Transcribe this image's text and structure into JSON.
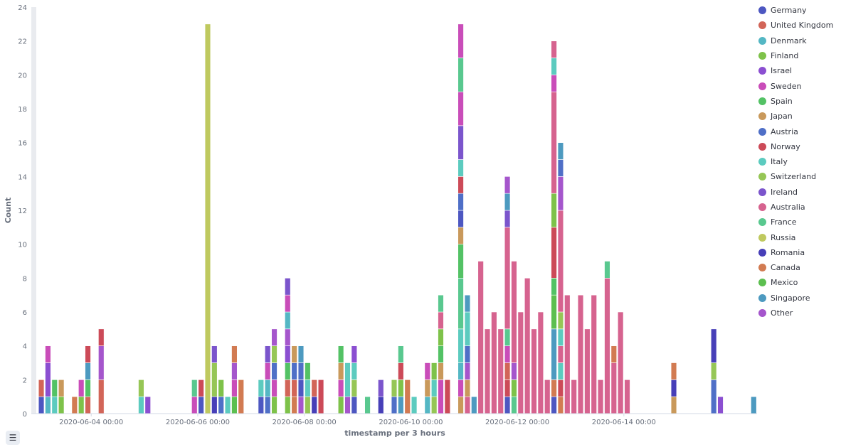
{
  "colors": {
    "Germany": "#4d57c1",
    "United Kingdom": "#d26558",
    "Denmark": "#54b7c4",
    "Finland": "#7ec24a",
    "Israel": "#8b4fd1",
    "Sweden": "#c94db9",
    "Spain": "#53c265",
    "Japan": "#c9995b",
    "Austria": "#4f6fc7",
    "Norway": "#cc4a58",
    "Italy": "#5ccbbf",
    "Switzerland": "#96c656",
    "Ireland": "#7b55cc",
    "Australia": "#d6638f",
    "France": "#59c88f",
    "Russia": "#bfc95f",
    "Romania": "#473fb8",
    "Canada": "#d27b52",
    "Mexico": "#5cbf50",
    "Singapore": "#4d9ac0",
    "Other": "#a556cc"
  },
  "legend_toggle": {
    "icon": "list-icon",
    "glyph": "☰"
  },
  "chart_data": {
    "type": "bar",
    "stacked": true,
    "xlabel": "timestamp per 3 hours",
    "ylabel": "Count",
    "ylim": [
      0,
      24
    ],
    "yticks": [
      0,
      2,
      4,
      6,
      8,
      10,
      12,
      14,
      16,
      18,
      20,
      22,
      24
    ],
    "xticks": [
      "2020-06-04 00:00",
      "2020-06-06 00:00",
      "2020-06-08 00:00",
      "2020-06-10 00:00",
      "2020-06-12 00:00",
      "2020-06-14 00:00"
    ],
    "x_range": [
      "2020-06-02 21:00",
      "2020-06-16 12:00"
    ],
    "grid": false,
    "legend_position": "right",
    "series_names": [
      "Germany",
      "United Kingdom",
      "Denmark",
      "Finland",
      "Israel",
      "Sweden",
      "Spain",
      "Japan",
      "Austria",
      "Norway",
      "Italy",
      "Switzerland",
      "Ireland",
      "Australia",
      "France",
      "Russia",
      "Romania",
      "Canada",
      "Mexico",
      "Singapore",
      "Other"
    ],
    "bars": [
      {
        "t": "2020-06-03 00:00",
        "s": [
          [
            "Germany",
            1
          ],
          [
            "United Kingdom",
            1
          ]
        ]
      },
      {
        "t": "2020-06-03 03:00",
        "s": [
          [
            "Denmark",
            1
          ],
          [
            "Israel",
            2
          ],
          [
            "Sweden",
            1
          ]
        ]
      },
      {
        "t": "2020-06-03 06:00",
        "s": [
          [
            "Italy",
            1
          ],
          [
            "Spain",
            1
          ]
        ]
      },
      {
        "t": "2020-06-03 09:00",
        "s": [
          [
            "Finland",
            1
          ],
          [
            "Japan",
            1
          ]
        ]
      },
      {
        "t": "2020-06-03 15:00",
        "s": [
          [
            "Canada",
            1
          ]
        ]
      },
      {
        "t": "2020-06-03 18:00",
        "s": [
          [
            "Finland",
            1
          ],
          [
            "Sweden",
            1
          ]
        ]
      },
      {
        "t": "2020-06-03 21:00",
        "s": [
          [
            "United Kingdom",
            1
          ],
          [
            "Spain",
            1
          ],
          [
            "Singapore",
            1
          ],
          [
            "Norway",
            1
          ]
        ]
      },
      {
        "t": "2020-06-04 03:00",
        "s": [
          [
            "United Kingdom",
            2
          ],
          [
            "Other",
            2
          ],
          [
            "Norway",
            1
          ]
        ]
      },
      {
        "t": "2020-06-04 21:00",
        "s": [
          [
            "Italy",
            1
          ],
          [
            "Switzerland",
            1
          ]
        ]
      },
      {
        "t": "2020-06-05 00:00",
        "s": [
          [
            "Israel",
            1
          ]
        ]
      },
      {
        "t": "2020-06-05 21:00",
        "s": [
          [
            "Sweden",
            1
          ],
          [
            "France",
            1
          ]
        ]
      },
      {
        "t": "2020-06-06 00:00",
        "s": [
          [
            "Germany",
            1
          ],
          [
            "Norway",
            1
          ]
        ]
      },
      {
        "t": "2020-06-06 03:00",
        "s": [
          [
            "Russia",
            23
          ]
        ]
      },
      {
        "t": "2020-06-06 06:00",
        "s": [
          [
            "Romania",
            1
          ],
          [
            "Switzerland",
            2
          ],
          [
            "Ireland",
            1
          ]
        ]
      },
      {
        "t": "2020-06-06 09:00",
        "s": [
          [
            "Austria",
            1
          ],
          [
            "Finland",
            1
          ]
        ]
      },
      {
        "t": "2020-06-06 12:00",
        "s": [
          [
            "Italy",
            1
          ]
        ]
      },
      {
        "t": "2020-06-06 15:00",
        "s": [
          [
            "Mexico",
            1
          ],
          [
            "Sweden",
            1
          ],
          [
            "Other",
            1
          ],
          [
            "Canada",
            1
          ]
        ]
      },
      {
        "t": "2020-06-06 18:00",
        "s": [
          [
            "Canada",
            2
          ]
        ]
      },
      {
        "t": "2020-06-07 03:00",
        "s": [
          [
            "Germany",
            1
          ],
          [
            "Italy",
            1
          ]
        ]
      },
      {
        "t": "2020-06-07 06:00",
        "s": [
          [
            "Austria",
            1
          ],
          [
            "Denmark",
            1
          ],
          [
            "Sweden",
            1
          ],
          [
            "Ireland",
            1
          ]
        ]
      },
      {
        "t": "2020-06-07 09:00",
        "s": [
          [
            "Finland",
            1
          ],
          [
            "Sweden",
            1
          ],
          [
            "Austria",
            1
          ],
          [
            "Switzerland",
            1
          ],
          [
            "Other",
            1
          ]
        ]
      },
      {
        "t": "2020-06-07 15:00",
        "s": [
          [
            "Finland",
            1
          ],
          [
            "United Kingdom",
            1
          ],
          [
            "Spain",
            1
          ],
          [
            "Israel",
            1
          ],
          [
            "Other",
            1
          ],
          [
            "Denmark",
            1
          ],
          [
            "Sweden",
            1
          ],
          [
            "Ireland",
            1
          ]
        ]
      },
      {
        "t": "2020-06-07 18:00",
        "s": [
          [
            "Canada",
            1
          ],
          [
            "United Kingdom",
            1
          ],
          [
            "Austria",
            1
          ],
          [
            "Japan",
            1
          ]
        ]
      },
      {
        "t": "2020-06-07 21:00",
        "s": [
          [
            "Other",
            1
          ],
          [
            "Germany",
            1
          ],
          [
            "Austria",
            1
          ],
          [
            "Singapore",
            1
          ]
        ]
      },
      {
        "t": "2020-06-08 00:00",
        "s": [
          [
            "Switzerland",
            1
          ],
          [
            "Italy",
            1
          ],
          [
            "Spain",
            1
          ]
        ]
      },
      {
        "t": "2020-06-08 03:00",
        "s": [
          [
            "Romania",
            1
          ],
          [
            "United Kingdom",
            1
          ]
        ]
      },
      {
        "t": "2020-06-08 06:00",
        "s": [
          [
            "Norway",
            2
          ]
        ]
      },
      {
        "t": "2020-06-08 15:00",
        "s": [
          [
            "Finland",
            1
          ],
          [
            "Sweden",
            1
          ],
          [
            "Japan",
            1
          ],
          [
            "Spain",
            1
          ]
        ]
      },
      {
        "t": "2020-06-08 18:00",
        "s": [
          [
            "Other",
            1
          ],
          [
            "Italy",
            2
          ]
        ]
      },
      {
        "t": "2020-06-08 21:00",
        "s": [
          [
            "Germany",
            1
          ],
          [
            "Switzerland",
            1
          ],
          [
            "Italy",
            1
          ],
          [
            "Israel",
            1
          ]
        ]
      },
      {
        "t": "2020-06-09 03:00",
        "s": [
          [
            "France",
            1
          ]
        ]
      },
      {
        "t": "2020-06-09 09:00",
        "s": [
          [
            "Romania",
            1
          ],
          [
            "Ireland",
            1
          ]
        ]
      },
      {
        "t": "2020-06-09 15:00",
        "s": [
          [
            "Austria",
            1
          ],
          [
            "Switzerland",
            1
          ]
        ]
      },
      {
        "t": "2020-06-09 18:00",
        "s": [
          [
            "Singapore",
            1
          ],
          [
            "Finland",
            1
          ],
          [
            "Norway",
            1
          ],
          [
            "France",
            1
          ]
        ]
      },
      {
        "t": "2020-06-09 21:00",
        "s": [
          [
            "Canada",
            2
          ]
        ]
      },
      {
        "t": "2020-06-10 00:00",
        "s": [
          [
            "Italy",
            1
          ]
        ]
      },
      {
        "t": "2020-06-10 06:00",
        "s": [
          [
            "Denmark",
            1
          ],
          [
            "Japan",
            1
          ],
          [
            "Sweden",
            1
          ]
        ]
      },
      {
        "t": "2020-06-10 09:00",
        "s": [
          [
            "Switzerland",
            1
          ],
          [
            "Italy",
            1
          ],
          [
            "Finland",
            1
          ]
        ]
      },
      {
        "t": "2020-06-10 12:00",
        "s": [
          [
            "Sweden",
            2
          ],
          [
            "Japan",
            1
          ],
          [
            "Spain",
            1
          ],
          [
            "Finland",
            1
          ],
          [
            "Australia",
            1
          ],
          [
            "France",
            1
          ]
        ]
      },
      {
        "t": "2020-06-10 15:00",
        "s": [
          [
            "Norway",
            2
          ]
        ]
      },
      {
        "t": "2020-06-10 21:00",
        "s": [
          [
            "Japan",
            1
          ],
          [
            "Sweden",
            1
          ],
          [
            "Denmark",
            1
          ],
          [
            "Italy",
            2
          ],
          [
            "France",
            3
          ],
          [
            "Spain",
            2
          ],
          [
            "Japan",
            1
          ],
          [
            "Germany",
            1
          ],
          [
            "Austria",
            1
          ],
          [
            "Norway",
            1
          ],
          [
            "Italy",
            1
          ],
          [
            "Ireland",
            2
          ],
          [
            "Sweden",
            2
          ],
          [
            "France",
            2
          ],
          [
            "Sweden",
            2
          ]
        ]
      },
      {
        "t": "2020-06-11 00:00",
        "s": [
          [
            "Australia",
            1
          ],
          [
            "Japan",
            1
          ],
          [
            "Other",
            1
          ],
          [
            "Austria",
            1
          ],
          [
            "Italy",
            2
          ],
          [
            "Singapore",
            1
          ]
        ]
      },
      {
        "t": "2020-06-11 03:00",
        "s": [
          [
            "Singapore",
            1
          ]
        ]
      },
      {
        "t": "2020-06-11 06:00",
        "s": [
          [
            "Australia",
            9
          ]
        ]
      },
      {
        "t": "2020-06-11 09:00",
        "s": [
          [
            "Australia",
            5
          ]
        ]
      },
      {
        "t": "2020-06-11 12:00",
        "s": [
          [
            "Australia",
            6
          ]
        ]
      },
      {
        "t": "2020-06-11 15:00",
        "s": [
          [
            "Australia",
            5
          ]
        ]
      },
      {
        "t": "2020-06-11 18:00",
        "s": [
          [
            "Germany",
            1
          ],
          [
            "Norway",
            1
          ],
          [
            "United Kingdom",
            1
          ],
          [
            "Sweden",
            1
          ],
          [
            "France",
            1
          ],
          [
            "Australia",
            6
          ],
          [
            "Ireland",
            1
          ],
          [
            "Singapore",
            1
          ],
          [
            "Other",
            1
          ]
        ]
      },
      {
        "t": "2020-06-11 21:00",
        "s": [
          [
            "France",
            1
          ],
          [
            "Finland",
            1
          ],
          [
            "Other",
            1
          ],
          [
            "Australia",
            6
          ]
        ]
      },
      {
        "t": "2020-06-12 00:00",
        "s": [
          [
            "Australia",
            6
          ]
        ]
      },
      {
        "t": "2020-06-12 03:00",
        "s": [
          [
            "Australia",
            8
          ]
        ]
      },
      {
        "t": "2020-06-12 06:00",
        "s": [
          [
            "Australia",
            5
          ]
        ]
      },
      {
        "t": "2020-06-12 09:00",
        "s": [
          [
            "Australia",
            6
          ]
        ]
      },
      {
        "t": "2020-06-12 12:00",
        "s": [
          [
            "Australia",
            2
          ]
        ]
      },
      {
        "t": "2020-06-12 15:00",
        "s": [
          [
            "Germany",
            1
          ],
          [
            "Canada",
            1
          ],
          [
            "Singapore",
            3
          ],
          [
            "Mexico",
            2
          ],
          [
            "Spain",
            1
          ],
          [
            "Norway",
            3
          ],
          [
            "Finland",
            2
          ],
          [
            "Australia",
            6
          ],
          [
            "Sweden",
            1
          ],
          [
            "Italy",
            1
          ],
          [
            "Australia",
            1
          ]
        ]
      },
      {
        "t": "2020-06-12 18:00",
        "s": [
          [
            "Canada",
            1
          ],
          [
            "Norway",
            1
          ],
          [
            "Italy",
            1
          ],
          [
            "Australia",
            1
          ],
          [
            "Italy",
            1
          ],
          [
            "Switzerland",
            1
          ],
          [
            "Australia",
            6
          ],
          [
            "Other",
            2
          ],
          [
            "Austria",
            1
          ],
          [
            "Singapore",
            1
          ]
        ]
      },
      {
        "t": "2020-06-12 21:00",
        "s": [
          [
            "Australia",
            7
          ]
        ]
      },
      {
        "t": "2020-06-13 00:00",
        "s": [
          [
            "Australia",
            2
          ]
        ]
      },
      {
        "t": "2020-06-13 03:00",
        "s": [
          [
            "Australia",
            7
          ]
        ]
      },
      {
        "t": "2020-06-13 06:00",
        "s": [
          [
            "Australia",
            5
          ]
        ]
      },
      {
        "t": "2020-06-13 09:00",
        "s": [
          [
            "Australia",
            7
          ]
        ]
      },
      {
        "t": "2020-06-13 12:00",
        "s": [
          [
            "Australia",
            2
          ]
        ]
      },
      {
        "t": "2020-06-13 15:00",
        "s": [
          [
            "Australia",
            8
          ],
          [
            "France",
            1
          ]
        ]
      },
      {
        "t": "2020-06-13 18:00",
        "s": [
          [
            "Australia",
            3
          ],
          [
            "Canada",
            1
          ]
        ]
      },
      {
        "t": "2020-06-13 21:00",
        "s": [
          [
            "Australia",
            6
          ]
        ]
      },
      {
        "t": "2020-06-14 00:00",
        "s": [
          [
            "Australia",
            2
          ]
        ]
      },
      {
        "t": "2020-06-14 21:00",
        "s": [
          [
            "Japan",
            1
          ],
          [
            "Romania",
            1
          ],
          [
            "Canada",
            1
          ]
        ]
      },
      {
        "t": "2020-06-15 15:00",
        "s": [
          [
            "Austria",
            2
          ],
          [
            "Switzerland",
            1
          ],
          [
            "Romania",
            2
          ]
        ]
      },
      {
        "t": "2020-06-15 18:00",
        "s": [
          [
            "Israel",
            1
          ]
        ]
      },
      {
        "t": "2020-06-16 09:00",
        "s": [
          [
            "Singapore",
            1
          ]
        ]
      }
    ]
  }
}
